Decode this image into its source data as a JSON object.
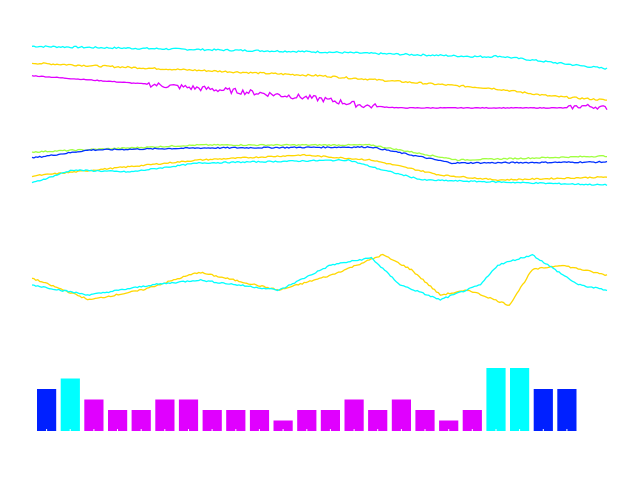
{
  "chart_data": [
    {
      "type": "line",
      "xlim": [
        0,
        100
      ],
      "ylim": [
        0,
        100
      ],
      "grid": false,
      "series": [
        {
          "color": "#00ffff",
          "points": [
            [
              0,
              91
            ],
            [
              50,
              83
            ],
            [
              79,
              76
            ],
            [
              81,
              77
            ],
            [
              100,
              59
            ]
          ]
        },
        {
          "color": "#ffd700",
          "points": [
            [
              0,
              67
            ],
            [
              50,
              49
            ],
            [
              80,
              31
            ],
            [
              90,
              20
            ],
            [
              100,
              14
            ]
          ]
        },
        {
          "color": "#e000ff",
          "noisy": true,
          "points": [
            [
              0,
              49
            ],
            [
              20,
              37
            ],
            [
              40,
              24
            ],
            [
              50,
              16
            ],
            [
              58,
              6
            ],
            [
              64,
              3
            ],
            [
              93,
              3
            ],
            [
              96,
              6
            ],
            [
              100,
              3
            ]
          ]
        }
      ]
    },
    {
      "type": "line",
      "xlim": [
        0,
        100
      ],
      "ylim": [
        0,
        100
      ],
      "grid": false,
      "series": [
        {
          "color": "#a0ff40",
          "points": [
            [
              0,
              76
            ],
            [
              29,
              90
            ],
            [
              59,
              90
            ],
            [
              74,
              60
            ],
            [
              100,
              68
            ]
          ]
        },
        {
          "color": "#0030ff",
          "points": [
            [
              0,
              64
            ],
            [
              10,
              80
            ],
            [
              29,
              84
            ],
            [
              59,
              86
            ],
            [
              73,
              54
            ],
            [
              100,
              56
            ]
          ]
        },
        {
          "color": "#ffd700",
          "points": [
            [
              0,
              28
            ],
            [
              29,
              60
            ],
            [
              47,
              70
            ],
            [
              59,
              60
            ],
            [
              71,
              30
            ],
            [
              81,
              20
            ],
            [
              100,
              26
            ]
          ]
        },
        {
          "color": "#00ffff",
          "points": [
            [
              0,
              14
            ],
            [
              7,
              40
            ],
            [
              17,
              36
            ],
            [
              29,
              54
            ],
            [
              55,
              60
            ],
            [
              61,
              40
            ],
            [
              68,
              20
            ],
            [
              81,
              16
            ],
            [
              100,
              10
            ]
          ]
        }
      ]
    },
    {
      "type": "line",
      "xlim": [
        0,
        100
      ],
      "ylim": [
        0,
        100
      ],
      "grid": false,
      "series": [
        {
          "color": "#ffd700",
          "points": [
            [
              0,
              53
            ],
            [
              10,
              17
            ],
            [
              19,
              33
            ],
            [
              29,
              63
            ],
            [
              43,
              33
            ],
            [
              52,
              58
            ],
            [
              61,
              92
            ],
            [
              66,
              67
            ],
            [
              71,
              25
            ],
            [
              76,
              33
            ],
            [
              83,
              8
            ],
            [
              87,
              67
            ],
            [
              92,
              75
            ],
            [
              100,
              58
            ]
          ]
        },
        {
          "color": "#00ffff",
          "points": [
            [
              0,
              42
            ],
            [
              5,
              33
            ],
            [
              10,
              25
            ],
            [
              21,
              42
            ],
            [
              29,
              50
            ],
            [
              43,
              33
            ],
            [
              52,
              75
            ],
            [
              59,
              87
            ],
            [
              64,
              42
            ],
            [
              71,
              17
            ],
            [
              78,
              42
            ],
            [
              81,
              75
            ],
            [
              87,
              92
            ],
            [
              95,
              42
            ],
            [
              100,
              33
            ]
          ]
        }
      ]
    },
    {
      "type": "bar",
      "ylim": [
        0,
        6
      ],
      "grid": false,
      "values": [
        4,
        5,
        3,
        2,
        2,
        3,
        3,
        2,
        2,
        2,
        1,
        2,
        2,
        3,
        2,
        3,
        2,
        1,
        2,
        6,
        6,
        4,
        4
      ],
      "colors": [
        "#0020ff",
        "#00ffff",
        "#e000ff",
        "#e000ff",
        "#e000ff",
        "#e000ff",
        "#e000ff",
        "#e000ff",
        "#e000ff",
        "#e000ff",
        "#e000ff",
        "#e000ff",
        "#e000ff",
        "#e000ff",
        "#e000ff",
        "#e000ff",
        "#e000ff",
        "#e000ff",
        "#e000ff",
        "#00ffff",
        "#00ffff",
        "#0020ff",
        "#0020ff"
      ]
    }
  ]
}
